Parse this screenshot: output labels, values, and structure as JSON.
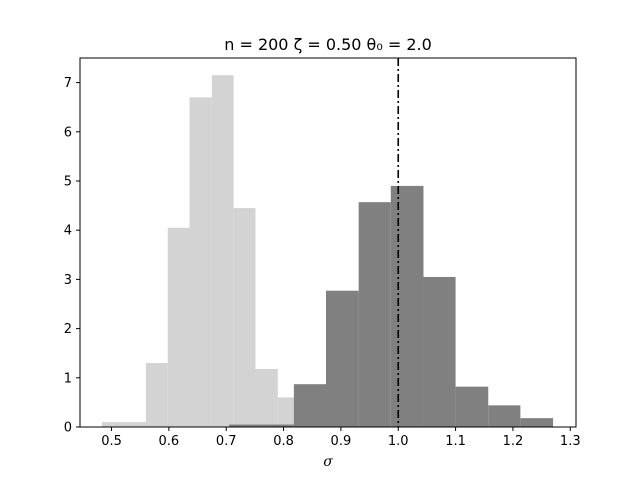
{
  "chart_data": {
    "type": "histogram",
    "title": "n = 200 ζ = 0.50 θ₀ = 2.0",
    "xlabel": "σ",
    "ylabel": "",
    "xlim": [
      0.445,
      1.31
    ],
    "ylim": [
      0,
      7.5
    ],
    "xticks": [
      0.5,
      0.6,
      0.7,
      0.8,
      0.9,
      1.0,
      1.1,
      1.2,
      1.3
    ],
    "xtick_labels": [
      "0.5",
      "0.6",
      "0.7",
      "0.8",
      "0.9",
      "1.0",
      "1.1",
      "1.2",
      "1.3"
    ],
    "yticks": [
      0,
      1,
      2,
      3,
      4,
      5,
      6,
      7
    ],
    "ytick_labels": [
      "0",
      "1",
      "2",
      "3",
      "4",
      "5",
      "6",
      "7"
    ],
    "grid": false,
    "reference_line": {
      "x": 1.0,
      "style": "dash-dot",
      "color": "#000000"
    },
    "series": [
      {
        "color": "#d3d3d3",
        "bin_edges": [
          0.483,
          0.521,
          0.56,
          0.598,
          0.636,
          0.675,
          0.713,
          0.751,
          0.79,
          0.828
        ],
        "heights": [
          0.1,
          0.1,
          1.3,
          4.05,
          6.7,
          7.15,
          4.45,
          1.18,
          0.6
        ]
      },
      {
        "color": "#808080",
        "bin_edges": [
          0.705,
          0.761,
          0.818,
          0.874,
          0.931,
          0.987,
          1.044,
          1.1,
          1.157,
          1.213,
          1.27
        ],
        "heights": [
          0.05,
          0.05,
          0.87,
          2.77,
          4.57,
          4.9,
          3.05,
          0.82,
          0.44,
          0.18
        ]
      }
    ]
  }
}
